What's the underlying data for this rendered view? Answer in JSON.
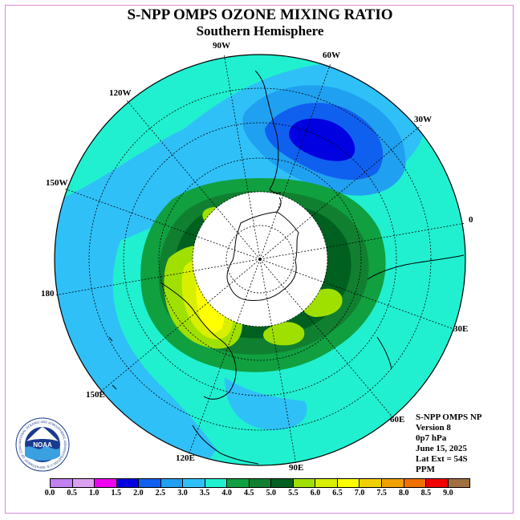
{
  "title": "S-NPP OMPS OZONE MIXING RATIO",
  "subtitle": "Southern Hemisphere",
  "lon_labels": {
    "w90": "90W",
    "w60": "60W",
    "w30": "30W",
    "w120": "120W",
    "w150": "150W",
    "e0": "0",
    "e180": "180",
    "e30": "30E",
    "e150": "150E",
    "e60": "60E",
    "e120": "120E",
    "e90": "90E"
  },
  "info": {
    "instrument": "S-NPP OMPS NP",
    "version": "Version 8",
    "level": "0p7 hPa",
    "date": "June 15, 2025",
    "lat_ext": "Lat Ext = 54S",
    "units": "PPM"
  },
  "logo": {
    "text": "NOAA",
    "ring_text": "NATIONAL OCEANIC AND ATMOSPHERIC ADMINISTRATION U.S. DEPARTMENT OF COMMERCE"
  },
  "colorbar": {
    "ticks": [
      "0.0",
      "0.5",
      "1.0",
      "1.5",
      "2.0",
      "2.5",
      "3.0",
      "3.5",
      "4.0",
      "4.5",
      "5.0",
      "5.5",
      "6.0",
      "6.5",
      "7.0",
      "7.5",
      "8.0",
      "8.5",
      "9.0"
    ],
    "colors": [
      "#c080f0",
      "#dba0f0",
      "#f000f0",
      "#0000e0",
      "#1060f0",
      "#20a0f0",
      "#30c0f8",
      "#20f0d0",
      "#10a040",
      "#108030",
      "#006020",
      "#a0e000",
      "#d8f000",
      "#ffff00",
      "#f0d000",
      "#f0a000",
      "#f07000",
      "#f00000",
      "#a07040"
    ]
  },
  "fill_colors": {
    "ocean": "#20f0d0",
    "band_25": "#20a0f0",
    "band_30": "#30c0f8",
    "core_15": "#0000e0",
    "core_20": "#1060f0",
    "green_45": "#10a040",
    "green_50": "#108030",
    "green_55": "#006020",
    "lime": "#a0e000",
    "yellowgreen": "#d8f000",
    "yellow": "#ffff00",
    "nodata": "#ffffff"
  }
}
